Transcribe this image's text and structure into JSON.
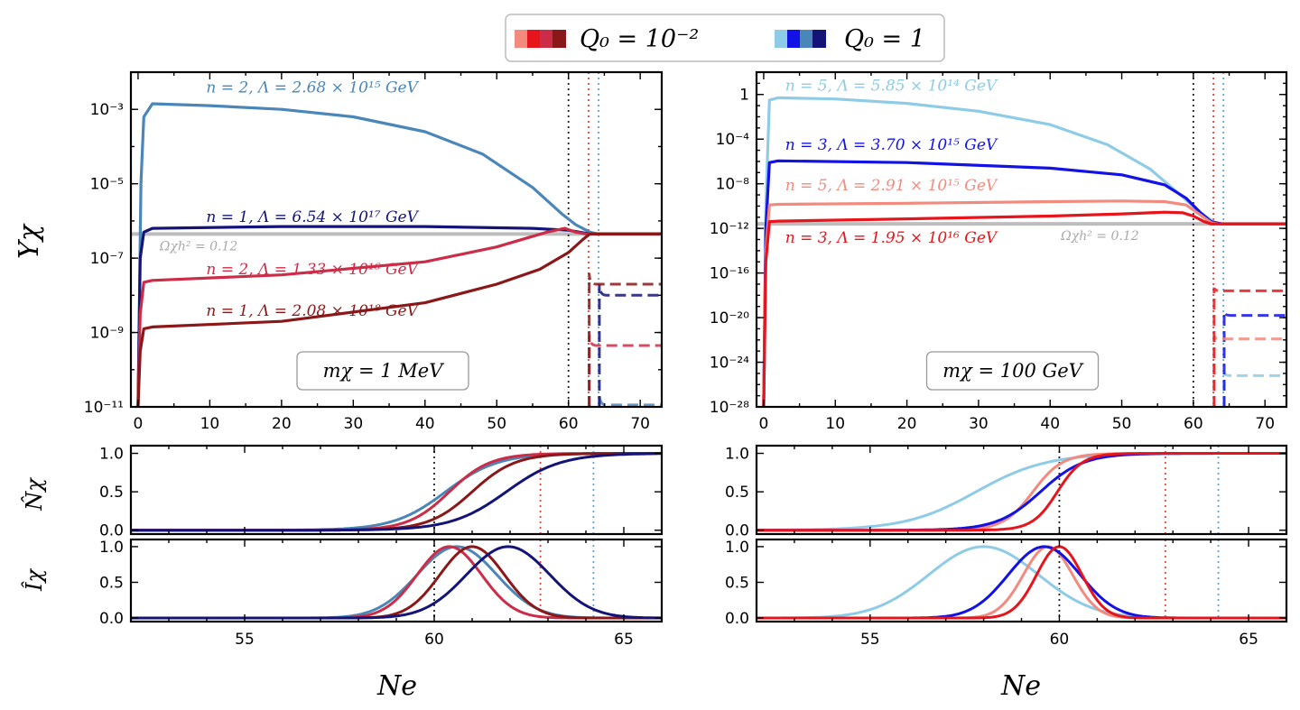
{
  "legend": {
    "q_small": "Q₀ = 10⁻²",
    "q_one": "Q₀ = 1",
    "red_swatches": [
      "#f28a7e",
      "#e8141c",
      "#cd2c48",
      "#8b1818"
    ],
    "blue_swatches": [
      "#8ecbe6",
      "#1212e6",
      "#4a86b8",
      "#141478"
    ]
  },
  "y_label_top": "Yχ",
  "y_label_N": "N̂χ",
  "y_label_I": "Îχ",
  "x_label": "Ne",
  "relic_label": "Ωχh² = 0.12",
  "chart_data": [
    {
      "type": "line",
      "id": "left_top",
      "box_label": "mχ = 1 MeV",
      "xlim": [
        -1,
        73
      ],
      "ylog": true,
      "ylim_exp": [
        -11,
        -2
      ],
      "xticks": [
        0,
        10,
        20,
        30,
        40,
        50,
        60,
        70
      ],
      "yticks": [
        {
          "e": -3,
          "t": "10⁻³"
        },
        {
          "e": -5,
          "t": "10⁻⁵"
        },
        {
          "e": -7,
          "t": "10⁻⁷"
        },
        {
          "e": -9,
          "t": "10⁻⁹"
        },
        {
          "e": -11,
          "t": "10⁻¹¹"
        }
      ],
      "vlines": [
        {
          "x": 60,
          "color": "#222222"
        },
        {
          "x": 62.8,
          "color": "#e8453c"
        },
        {
          "x": 64.2,
          "color": "#5aa8d8"
        }
      ],
      "relic_exp": -6.35,
      "series": [
        {
          "name": "n = 2, Λ = 2.68 × 10¹⁵ GeV",
          "color": "#4a86b8",
          "pts": [
            [
              0,
              -11
            ],
            [
              0.4,
              -5
            ],
            [
              0.8,
              -3.2
            ],
            [
              2,
              -2.85
            ],
            [
              10,
              -2.9
            ],
            [
              20,
              -3.0
            ],
            [
              30,
              -3.2
            ],
            [
              40,
              -3.6
            ],
            [
              48,
              -4.2
            ],
            [
              55,
              -5.1
            ],
            [
              59,
              -5.8
            ],
            [
              61,
              -6.1
            ],
            [
              63,
              -6.3
            ],
            [
              64,
              -6.35
            ],
            [
              73,
              -6.35
            ]
          ],
          "dash_exp": -10.95,
          "dash_start": 64.3,
          "label_x": 9.5,
          "label_exp": -2.55
        },
        {
          "name": "n = 1, Λ = 6.54 × 10¹⁷ GeV",
          "color": "#141478",
          "pts": [
            [
              0,
              -11
            ],
            [
              0.3,
              -7
            ],
            [
              0.8,
              -6.3
            ],
            [
              2,
              -6.2
            ],
            [
              20,
              -6.15
            ],
            [
              40,
              -6.15
            ],
            [
              55,
              -6.2
            ],
            [
              60,
              -6.25
            ],
            [
              63,
              -6.35
            ],
            [
              73,
              -6.35
            ]
          ],
          "dash_exp": -8.0,
          "dash_start": 64.3,
          "label_x": 9.5,
          "label_exp": -6.03
        },
        {
          "name": "n = 2, Λ = 1.33 × 10¹⁶ GeV",
          "color": "#cd2c48",
          "pts": [
            [
              0,
              -11
            ],
            [
              0.3,
              -8.5
            ],
            [
              0.8,
              -7.65
            ],
            [
              2,
              -7.6
            ],
            [
              20,
              -7.45
            ],
            [
              40,
              -7.1
            ],
            [
              50,
              -6.7
            ],
            [
              57,
              -6.3
            ],
            [
              59.5,
              -6.2
            ],
            [
              61,
              -6.3
            ],
            [
              62.5,
              -6.35
            ],
            [
              73,
              -6.35
            ]
          ],
          "dash_exp": -9.35,
          "dash_start": 62.9,
          "label_x": 9.5,
          "label_exp": -7.43
        },
        {
          "name": "n = 1, Λ = 2.08 × 10¹⁸ GeV",
          "color": "#8b1818",
          "pts": [
            [
              0,
              -11
            ],
            [
              0.3,
              -9.5
            ],
            [
              0.8,
              -8.9
            ],
            [
              2,
              -8.85
            ],
            [
              20,
              -8.7
            ],
            [
              40,
              -8.2
            ],
            [
              50,
              -7.7
            ],
            [
              56,
              -7.3
            ],
            [
              60,
              -6.85
            ],
            [
              62,
              -6.5
            ],
            [
              63,
              -6.35
            ],
            [
              73,
              -6.35
            ]
          ],
          "dash_exp": -7.7,
          "dash_start": 62.9,
          "label_x": 9.5,
          "label_exp": -8.55
        }
      ]
    },
    {
      "type": "line",
      "id": "right_top",
      "box_label": "mχ = 100 GeV",
      "xlim": [
        -1,
        73
      ],
      "ylog": true,
      "ylim_exp": [
        -28,
        2
      ],
      "xticks": [
        0,
        10,
        20,
        30,
        40,
        50,
        60,
        70
      ],
      "yticks": [
        {
          "e": 0,
          "t": "1"
        },
        {
          "e": -4,
          "t": "10⁻⁴"
        },
        {
          "e": -8,
          "t": "10⁻⁸"
        },
        {
          "e": -12,
          "t": "10⁻¹²"
        },
        {
          "e": -16,
          "t": "10⁻¹⁶"
        },
        {
          "e": -20,
          "t": "10⁻²⁰"
        },
        {
          "e": -24,
          "t": "10⁻²⁴"
        },
        {
          "e": -28,
          "t": "10⁻²⁸"
        }
      ],
      "vlines": [
        {
          "x": 60,
          "color": "#222222"
        },
        {
          "x": 62.8,
          "color": "#e8453c"
        },
        {
          "x": 64.2,
          "color": "#5aa8d8"
        }
      ],
      "relic_exp": -11.6,
      "series": [
        {
          "name": "n = 5, Λ = 5.85 × 10¹⁴ GeV",
          "color": "#8ecbe6",
          "pts": [
            [
              0,
              -28
            ],
            [
              0.3,
              -10
            ],
            [
              0.8,
              -0.5
            ],
            [
              2,
              -0.3
            ],
            [
              10,
              -0.4
            ],
            [
              20,
              -0.8
            ],
            [
              30,
              -1.5
            ],
            [
              40,
              -2.7
            ],
            [
              48,
              -4.5
            ],
            [
              54,
              -6.7
            ],
            [
              58,
              -8.9
            ],
            [
              61,
              -10.6
            ],
            [
              63,
              -11.5
            ],
            [
              64,
              -11.6
            ],
            [
              73,
              -11.6
            ]
          ],
          "dash_exp": -25.2,
          "dash_start": 64.3,
          "label_x": 3,
          "label_exp": 0.35
        },
        {
          "name": "n = 3, Λ = 3.70 × 10¹⁵ GeV",
          "color": "#1212e6",
          "pts": [
            [
              0,
              -28
            ],
            [
              0.3,
              -12
            ],
            [
              0.8,
              -6.1
            ],
            [
              2,
              -5.95
            ],
            [
              20,
              -6.1
            ],
            [
              40,
              -6.6
            ],
            [
              50,
              -7.2
            ],
            [
              56,
              -8.1
            ],
            [
              59,
              -9.3
            ],
            [
              61,
              -10.6
            ],
            [
              62.5,
              -11.4
            ],
            [
              64,
              -11.6
            ],
            [
              73,
              -11.6
            ]
          ],
          "dash_exp": -19.8,
          "dash_start": 64.3,
          "label_x": 3,
          "label_exp": -4.95
        },
        {
          "name": "n = 5, Λ = 2.91 × 10¹⁵ GeV",
          "color": "#f28a7e",
          "pts": [
            [
              0,
              -28
            ],
            [
              0.3,
              -14
            ],
            [
              0.8,
              -9.9
            ],
            [
              2,
              -9.85
            ],
            [
              20,
              -9.75
            ],
            [
              40,
              -9.6
            ],
            [
              50,
              -9.55
            ],
            [
              56,
              -9.6
            ],
            [
              59,
              -9.9
            ],
            [
              61,
              -10.8
            ],
            [
              62.5,
              -11.5
            ],
            [
              63.5,
              -11.6
            ],
            [
              73,
              -11.6
            ]
          ],
          "dash_exp": -21.9,
          "dash_start": 62.9,
          "label_x": 3,
          "label_exp": -8.6
        },
        {
          "name": "n = 3, Λ = 1.95 × 10¹⁶ GeV",
          "color": "#e8141c",
          "pts": [
            [
              0,
              -28
            ],
            [
              0.3,
              -15
            ],
            [
              0.8,
              -11.4
            ],
            [
              2,
              -11.35
            ],
            [
              20,
              -11.15
            ],
            [
              40,
              -10.9
            ],
            [
              50,
              -10.7
            ],
            [
              56,
              -10.55
            ],
            [
              58.5,
              -10.6
            ],
            [
              60,
              -10.9
            ],
            [
              61.5,
              -11.4
            ],
            [
              62.5,
              -11.6
            ],
            [
              73,
              -11.6
            ]
          ],
          "dash_exp": -17.6,
          "dash_start": 62.9,
          "label_x": 3,
          "label_exp": -13.3
        }
      ]
    },
    {
      "type": "line",
      "id": "left_N",
      "xlim": [
        52,
        66
      ],
      "ylim": [
        -0.05,
        1.1
      ],
      "yticks": [
        0,
        0.5,
        1.0
      ],
      "vlines": [
        {
          "x": 60,
          "color": "#222222"
        },
        {
          "x": 62.8,
          "color": "#e8453c"
        },
        {
          "x": 64.2,
          "color": "#5aa8d8"
        }
      ],
      "series": [
        {
          "color": "#4a86b8",
          "mu": 60.3,
          "s": 1.15
        },
        {
          "color": "#cd2c48",
          "mu": 60.4,
          "s": 0.9
        },
        {
          "color": "#8b1818",
          "mu": 61.0,
          "s": 0.95
        },
        {
          "color": "#141478",
          "mu": 61.9,
          "s": 1.2
        }
      ]
    },
    {
      "type": "line",
      "id": "left_I",
      "xlim": [
        52,
        66
      ],
      "ylim": [
        -0.05,
        1.1
      ],
      "xticks": [
        55,
        60,
        65
      ],
      "yticks": [
        0,
        0.5,
        1.0
      ],
      "vlines": [
        {
          "x": 60,
          "color": "#222222"
        },
        {
          "x": 62.8,
          "color": "#e8453c"
        },
        {
          "x": 64.2,
          "color": "#5aa8d8"
        }
      ],
      "series": [
        {
          "color": "#4a86b8",
          "mu": 60.6,
          "s": 1.05
        },
        {
          "color": "#cd2c48",
          "mu": 60.4,
          "s": 0.85
        },
        {
          "color": "#8b1818",
          "mu": 61.0,
          "s": 0.85
        },
        {
          "color": "#141478",
          "mu": 61.95,
          "s": 1.1
        }
      ]
    },
    {
      "type": "line",
      "id": "right_N",
      "xlim": [
        52,
        66
      ],
      "ylim": [
        -0.05,
        1.1
      ],
      "yticks": [
        0,
        0.5,
        1.0
      ],
      "vlines": [
        {
          "x": 60,
          "color": "#222222"
        },
        {
          "x": 62.8,
          "color": "#e8453c"
        },
        {
          "x": 64.2,
          "color": "#5aa8d8"
        }
      ],
      "series": [
        {
          "color": "#8ecbe6",
          "mu": 57.8,
          "s": 1.55
        },
        {
          "color": "#f28a7e",
          "mu": 59.3,
          "s": 0.65
        },
        {
          "color": "#1212e6",
          "mu": 59.5,
          "s": 0.95
        },
        {
          "color": "#e8141c",
          "mu": 59.95,
          "s": 0.55
        }
      ]
    },
    {
      "type": "line",
      "id": "right_I",
      "xlim": [
        52,
        66
      ],
      "ylim": [
        -0.05,
        1.1
      ],
      "xticks": [
        55,
        60,
        65
      ],
      "yticks": [
        0,
        0.5,
        1.0
      ],
      "vlines": [
        {
          "x": 60,
          "color": "#222222"
        },
        {
          "x": 62.8,
          "color": "#e8453c"
        },
        {
          "x": 64.2,
          "color": "#5aa8d8"
        }
      ],
      "series": [
        {
          "color": "#8ecbe6",
          "mu": 58.0,
          "s": 1.45
        },
        {
          "color": "#f28a7e",
          "mu": 59.7,
          "s": 0.65
        },
        {
          "color": "#1212e6",
          "mu": 59.6,
          "s": 0.95
        },
        {
          "color": "#e8141c",
          "mu": 60.0,
          "s": 0.6
        }
      ]
    }
  ]
}
